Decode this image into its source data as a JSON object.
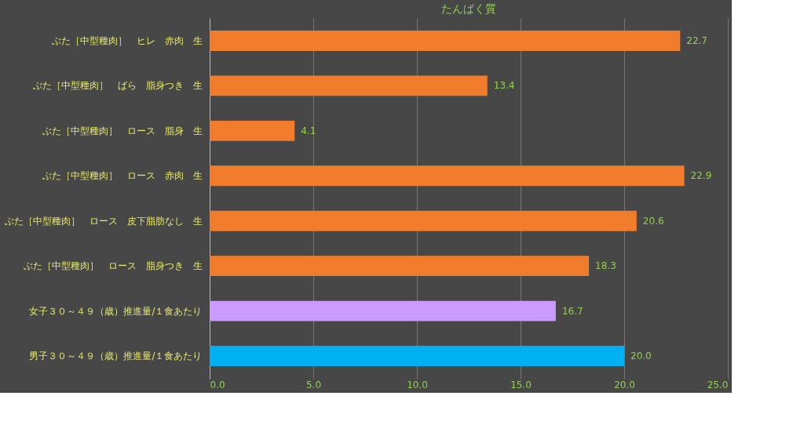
{
  "chart_data": {
    "type": "bar",
    "orientation": "horizontal",
    "title": "たんぱく質",
    "categories": [
      "ぶた［中型種肉］　ヒレ　赤肉　生",
      "ぶた［中型種肉］　ばら　脂身つき　生",
      "ぶた［中型種肉］　ロース　脂身　生",
      "ぶた［中型種肉］　ロース　赤肉　生",
      "ぶた［中型種肉］　ロース　皮下脂肪なし　生",
      "ぶた［中型種肉］　ロース　脂身つき　生",
      "女子３０～４９（歳）推進量/１食あたり",
      "男子３０～４９（歳）推進量/１食あたり"
    ],
    "values": [
      22.7,
      13.4,
      4.1,
      22.9,
      20.6,
      18.3,
      16.7,
      20.0
    ],
    "value_labels": [
      "22.7",
      "13.4",
      "4.1",
      "22.9",
      "20.6",
      "18.3",
      "16.7",
      "20.0"
    ],
    "colors": [
      "#f07c2c",
      "#f07c2c",
      "#f07c2c",
      "#f07c2c",
      "#f07c2c",
      "#f07c2c",
      "#cc99ff",
      "#00b0f0"
    ],
    "xlim": [
      0,
      25
    ],
    "xticks": [
      {
        "value": 0,
        "label": "0.0"
      },
      {
        "value": 5,
        "label": "5.0"
      },
      {
        "value": 10,
        "label": "10.0"
      },
      {
        "value": 15,
        "label": "15.0"
      },
      {
        "value": 20,
        "label": "20.0"
      },
      {
        "value": 25,
        "label": "25.0"
      }
    ],
    "grid": "x"
  }
}
